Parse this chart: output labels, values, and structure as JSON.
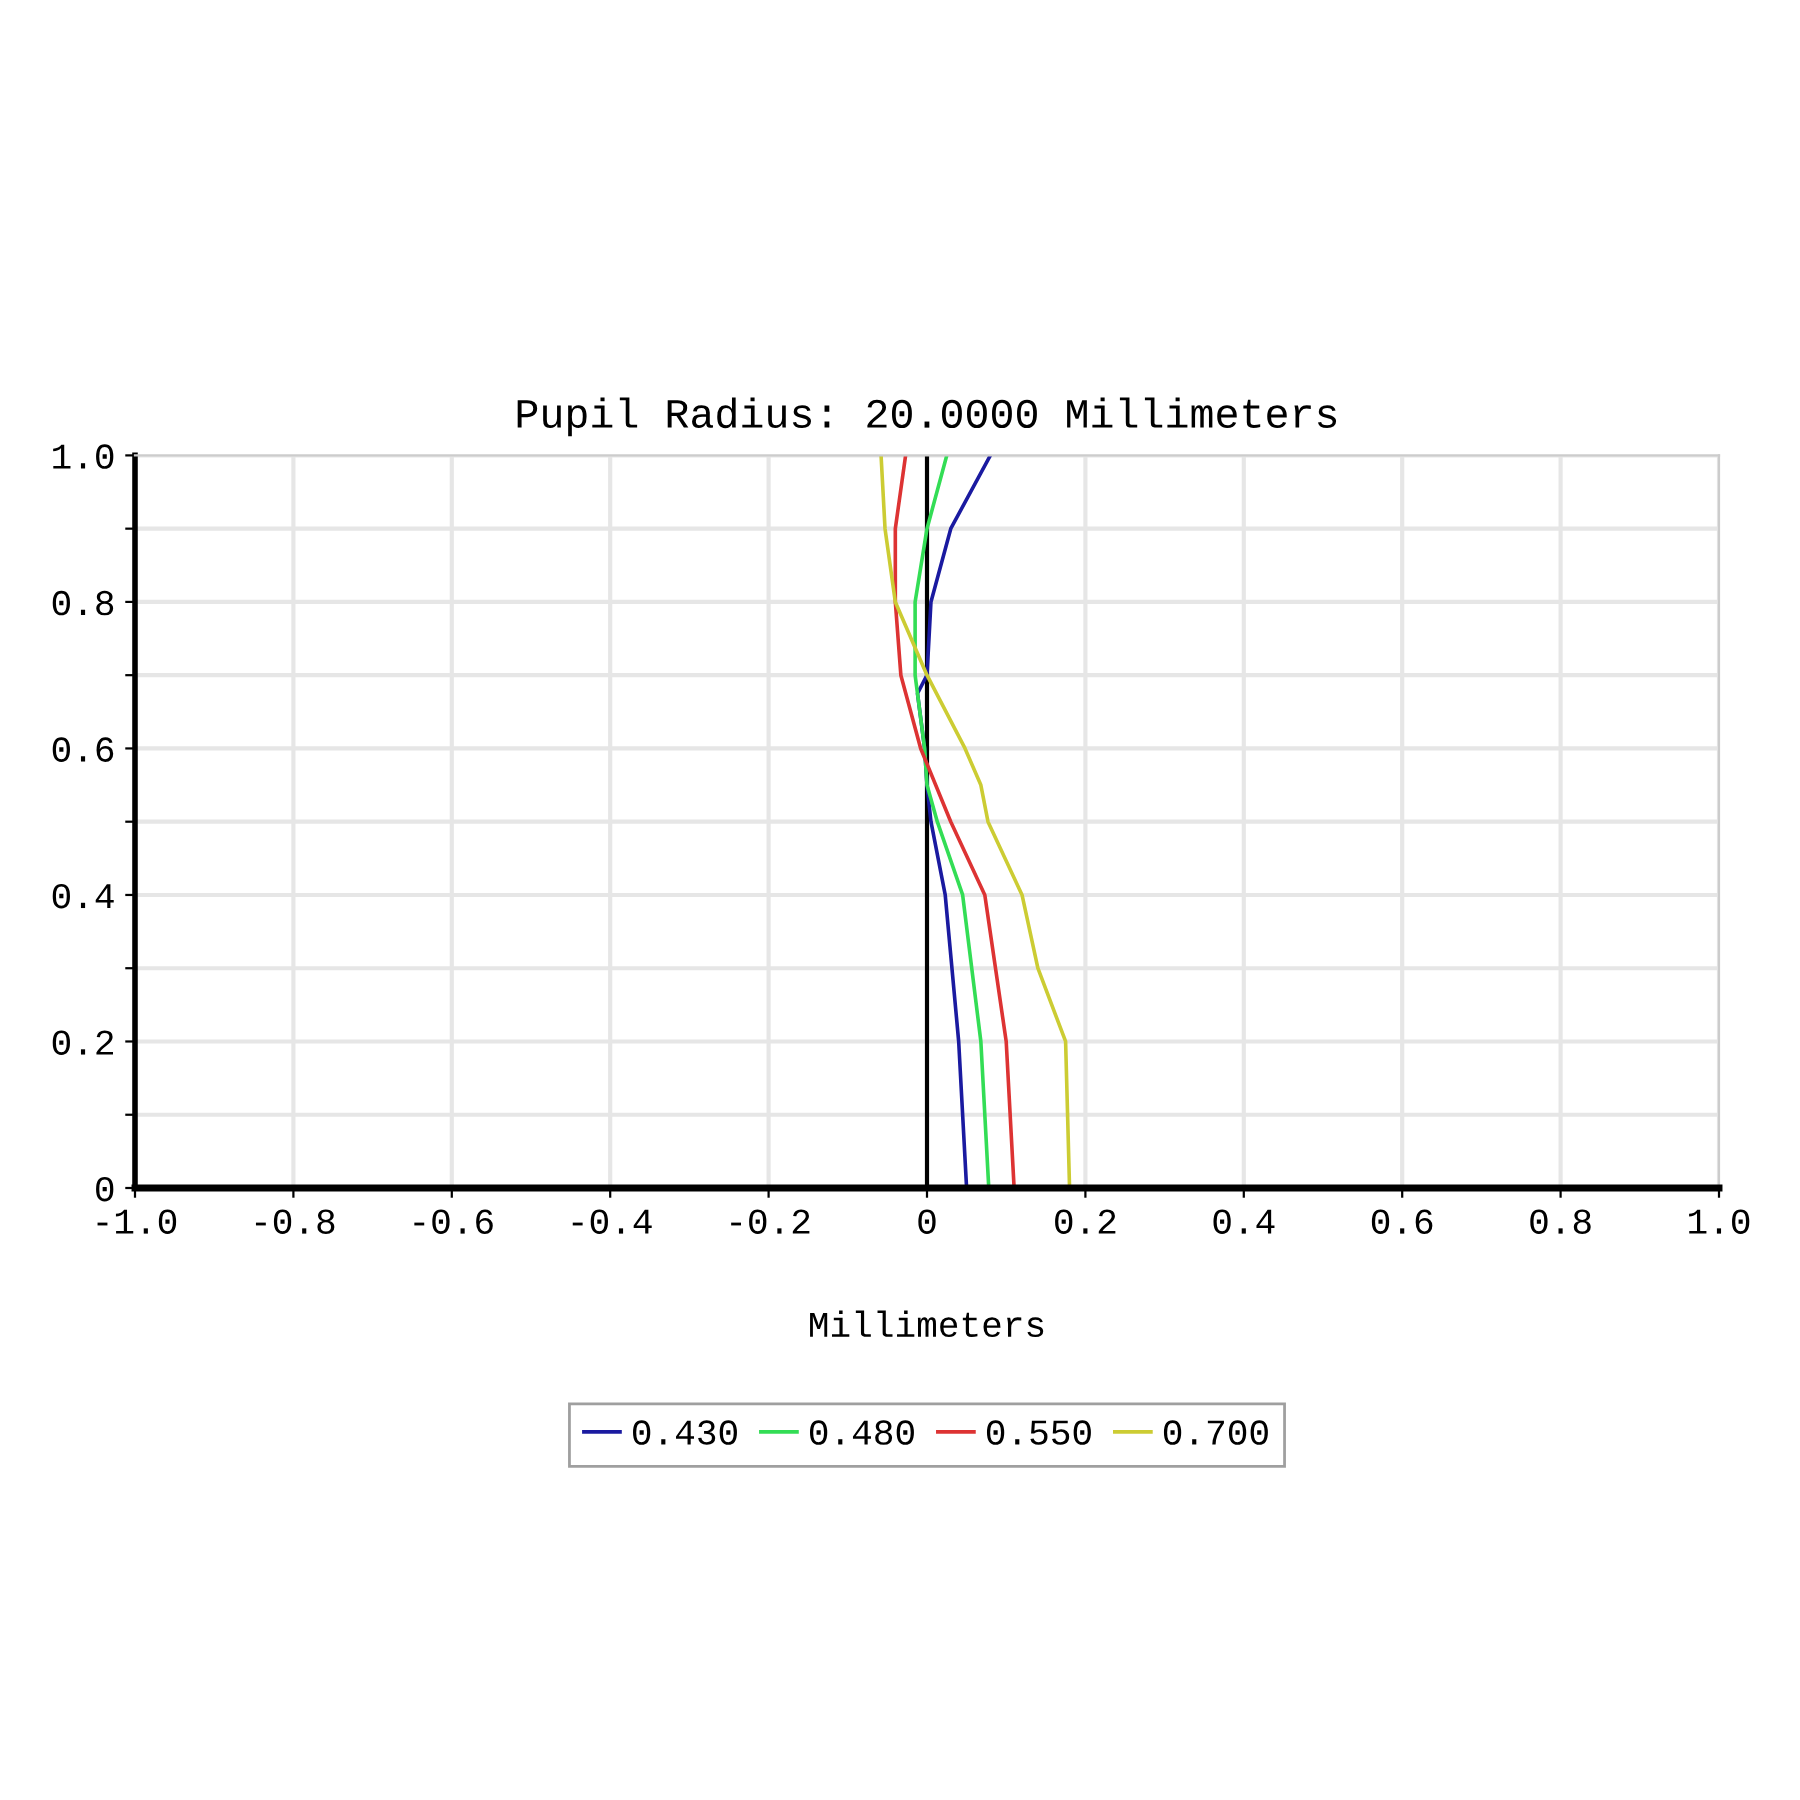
{
  "chart_data": {
    "type": "line",
    "title": "Pupil Radius: 20.0000 Millimeters",
    "xlabel": "Millimeters",
    "series": [
      {
        "name": "0.430",
        "color": "#1a1aa0",
        "x": [
          0.05,
          0.04,
          0.023,
          0.005,
          0,
          -0.003,
          -0.012,
          0,
          0.005,
          0.03,
          0.08
        ],
        "values": [
          0,
          0.2,
          0.4,
          0.5,
          0.55,
          0.6,
          0.675,
          0.7,
          0.8,
          0.9,
          1.0
        ]
      },
      {
        "name": "0.480",
        "color": "#33dd55",
        "x": [
          0.078,
          0.068,
          0.045,
          0.013,
          0,
          -0.003,
          -0.015,
          -0.015,
          0,
          0.025
        ],
        "values": [
          0,
          0.2,
          0.4,
          0.5,
          0.55,
          0.6,
          0.7,
          0.8,
          0.9,
          1.0
        ]
      },
      {
        "name": "0.550",
        "color": "#dd3333",
        "x": [
          0.11,
          0.1,
          0.073,
          0.03,
          -0.008,
          -0.033,
          -0.04,
          -0.04,
          -0.027
        ],
        "values": [
          0,
          0.2,
          0.4,
          0.5,
          0.6,
          0.7,
          0.8,
          0.9,
          1.0
        ]
      },
      {
        "name": "0.700",
        "color": "#cccc33",
        "x": [
          0.18,
          0.175,
          0.14,
          0.12,
          0.077,
          0.068,
          0.048,
          0,
          -0.04,
          -0.053,
          -0.058
        ],
        "values": [
          0,
          0.2,
          0.3,
          0.4,
          0.5,
          0.55,
          0.6,
          0.7,
          0.8,
          0.9,
          1.0
        ]
      }
    ],
    "xlim": [
      -1.0,
      1.0
    ],
    "xticks": [
      {
        "value": -1.0,
        "label": "-1.0"
      },
      {
        "value": -0.8,
        "label": "-0.8"
      },
      {
        "value": -0.6,
        "label": "-0.6"
      },
      {
        "value": -0.4,
        "label": "-0.4"
      },
      {
        "value": -0.2,
        "label": "-0.2"
      },
      0,
      0.2,
      0.4,
      0.6,
      0.8,
      {
        "value": 1.0,
        "label": "1.0"
      }
    ],
    "ylim": [
      0,
      1.0
    ],
    "yticks": [
      0,
      {
        "value": 0.1,
        "label": null
      },
      0.2,
      {
        "value": 0.3,
        "label": null
      },
      0.4,
      {
        "value": 0.5,
        "label": null
      },
      0.6,
      {
        "value": 0.7,
        "label": null
      },
      0.8,
      {
        "value": 0.9,
        "label": null
      },
      {
        "value": 1.0,
        "label": "1.0"
      }
    ],
    "ref_lines": [
      {
        "axis": "x",
        "value": 0,
        "color": "#000000"
      }
    ],
    "grid": true,
    "legend": "bottom",
    "marker": "none",
    "line_style": "solid"
  }
}
